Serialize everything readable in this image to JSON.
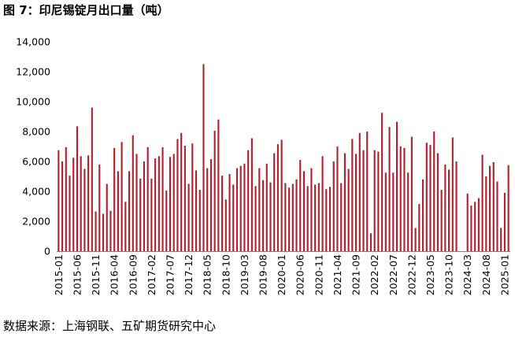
{
  "title": "图 7：印尼锡锭月出口量（吨）",
  "source": "数据来源：上海钢联、五矿期货研究中心",
  "colors": {
    "bar": "#b0212e",
    "axis": "#7f7f7f",
    "text": "#000000"
  },
  "chart_data": {
    "type": "bar",
    "title": "图 7：印尼锡锭月出口量（吨）",
    "xlabel": "",
    "ylabel": "",
    "ylim": [
      0,
      14000
    ],
    "yticks": [
      0,
      2000,
      4000,
      6000,
      8000,
      10000,
      12000,
      14000
    ],
    "ytick_labels": [
      "0",
      "2,000",
      "4,000",
      "6,000",
      "8,000",
      "10,000",
      "12,000",
      "14,000"
    ],
    "xtick_labels": [
      "2015-01",
      "2015-06",
      "2015-11",
      "2016-04",
      "2016-09",
      "2017-02",
      "2017-07",
      "2017-12",
      "2018-05",
      "2018-10",
      "2019-03",
      "2019-08",
      "2020-01",
      "2020-06",
      "2020-11",
      "2021-04",
      "2021-09",
      "2022-02",
      "2022-07",
      "2022-12",
      "2023-05",
      "2023-10",
      "2024-03",
      "2024-08",
      "2025-01"
    ],
    "grid": false,
    "legend": "none",
    "categories": [
      "2015-01",
      "2015-02",
      "2015-03",
      "2015-04",
      "2015-05",
      "2015-06",
      "2015-07",
      "2015-08",
      "2015-09",
      "2015-10",
      "2015-11",
      "2015-12",
      "2016-01",
      "2016-02",
      "2016-03",
      "2016-04",
      "2016-05",
      "2016-06",
      "2016-07",
      "2016-08",
      "2016-09",
      "2016-10",
      "2016-11",
      "2016-12",
      "2017-01",
      "2017-02",
      "2017-03",
      "2017-04",
      "2017-05",
      "2017-06",
      "2017-07",
      "2017-08",
      "2017-09",
      "2017-10",
      "2017-11",
      "2017-12",
      "2018-01",
      "2018-02",
      "2018-03",
      "2018-04",
      "2018-05",
      "2018-06",
      "2018-07",
      "2018-08",
      "2018-09",
      "2018-10",
      "2018-11",
      "2018-12",
      "2019-01",
      "2019-02",
      "2019-03",
      "2019-04",
      "2019-05",
      "2019-06",
      "2019-07",
      "2019-08",
      "2019-09",
      "2019-10",
      "2019-11",
      "2019-12",
      "2020-01",
      "2020-02",
      "2020-03",
      "2020-04",
      "2020-05",
      "2020-06",
      "2020-07",
      "2020-08",
      "2020-09",
      "2020-10",
      "2020-11",
      "2020-12",
      "2021-01",
      "2021-02",
      "2021-03",
      "2021-04",
      "2021-05",
      "2021-06",
      "2021-07",
      "2021-08",
      "2021-09",
      "2021-10",
      "2021-11",
      "2021-12",
      "2022-01",
      "2022-02",
      "2022-03",
      "2022-04",
      "2022-05",
      "2022-06",
      "2022-07",
      "2022-08",
      "2022-09",
      "2022-10",
      "2022-11",
      "2022-12",
      "2023-01",
      "2023-02",
      "2023-03",
      "2023-04",
      "2023-05",
      "2023-06",
      "2023-07",
      "2023-08",
      "2023-09",
      "2023-10",
      "2023-11",
      "2023-12",
      "2024-01",
      "2024-02",
      "2024-03",
      "2024-04",
      "2024-05",
      "2024-06",
      "2024-07",
      "2024-08",
      "2024-09",
      "2024-10",
      "2024-11",
      "2024-12",
      "2025-01",
      "2025-02"
    ],
    "values": [
      6750,
      6000,
      6950,
      5050,
      6250,
      8350,
      6350,
      5500,
      6400,
      9600,
      2650,
      5800,
      2500,
      4500,
      2700,
      6900,
      5350,
      7300,
      3300,
      5350,
      7750,
      6500,
      4850,
      6000,
      6950,
      4850,
      6200,
      6350,
      6950,
      4050,
      6300,
      6500,
      7500,
      7900,
      7050,
      4500,
      7200,
      5400,
      4100,
      12500,
      5550,
      6150,
      8050,
      8800,
      5050,
      3450,
      5150,
      4450,
      5550,
      5700,
      5850,
      6750,
      7550,
      4350,
      5550,
      4750,
      5850,
      4600,
      6550,
      7150,
      7450,
      4550,
      4250,
      4500,
      4800,
      6100,
      5350,
      4350,
      5550,
      4450,
      4550,
      6350,
      4150,
      4300,
      6000,
      7000,
      4550,
      6550,
      5500,
      7500,
      6500,
      7900,
      6750,
      8000,
      1200,
      6750,
      6650,
      9250,
      5250,
      8300,
      5250,
      8650,
      7000,
      6900,
      5250,
      7650,
      1550,
      3150,
      4800,
      7250,
      7100,
      8000,
      6550,
      4100,
      5800,
      5450,
      7600,
      6000,
      0,
      0,
      3850,
      3050,
      3300,
      3550,
      6450,
      5000,
      5700,
      5950,
      4650,
      1550,
      3900,
      5750
    ]
  }
}
